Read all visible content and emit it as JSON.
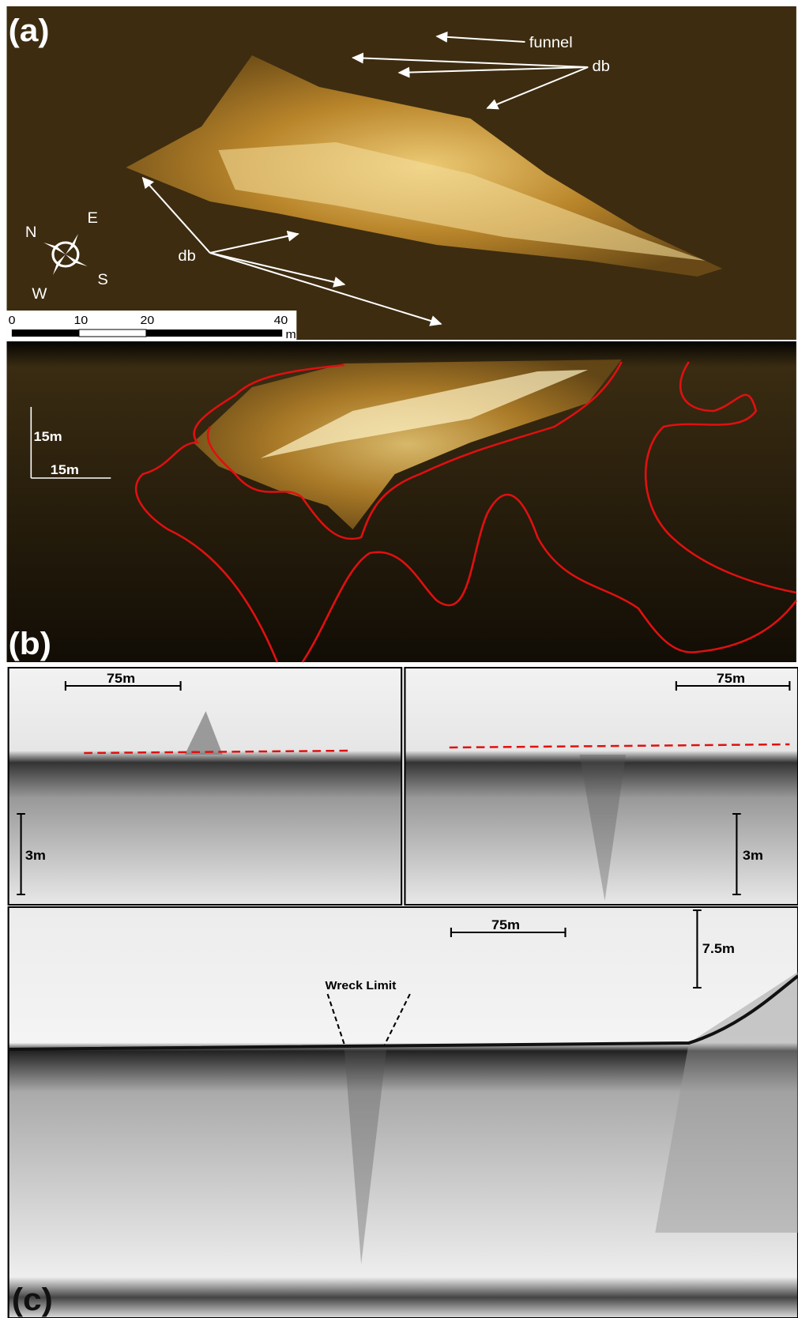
{
  "panel_a": {
    "label": "(a)",
    "funnel": "funnel",
    "db_top": "db",
    "db_bottom": "db",
    "compass": {
      "n": "N",
      "e": "E",
      "s": "S",
      "w": "W"
    },
    "scale_bar": {
      "ticks": [
        "0",
        "10",
        "20",
        "40"
      ],
      "unit": "m"
    }
  },
  "panel_b": {
    "label": "(b)",
    "scale_vertical": "15m",
    "scale_horizontal": "15m"
  },
  "panel_c": {
    "label": "(c)",
    "left_scale_horizontal": "75m",
    "left_scale_vertical": "3m",
    "right_scale_horizontal": "75m",
    "right_scale_vertical": "3m",
    "bottom_scale_horizontal": "75m",
    "bottom_scale_vertical": "7.5m",
    "wreck_limit": "Wreck Limit"
  }
}
